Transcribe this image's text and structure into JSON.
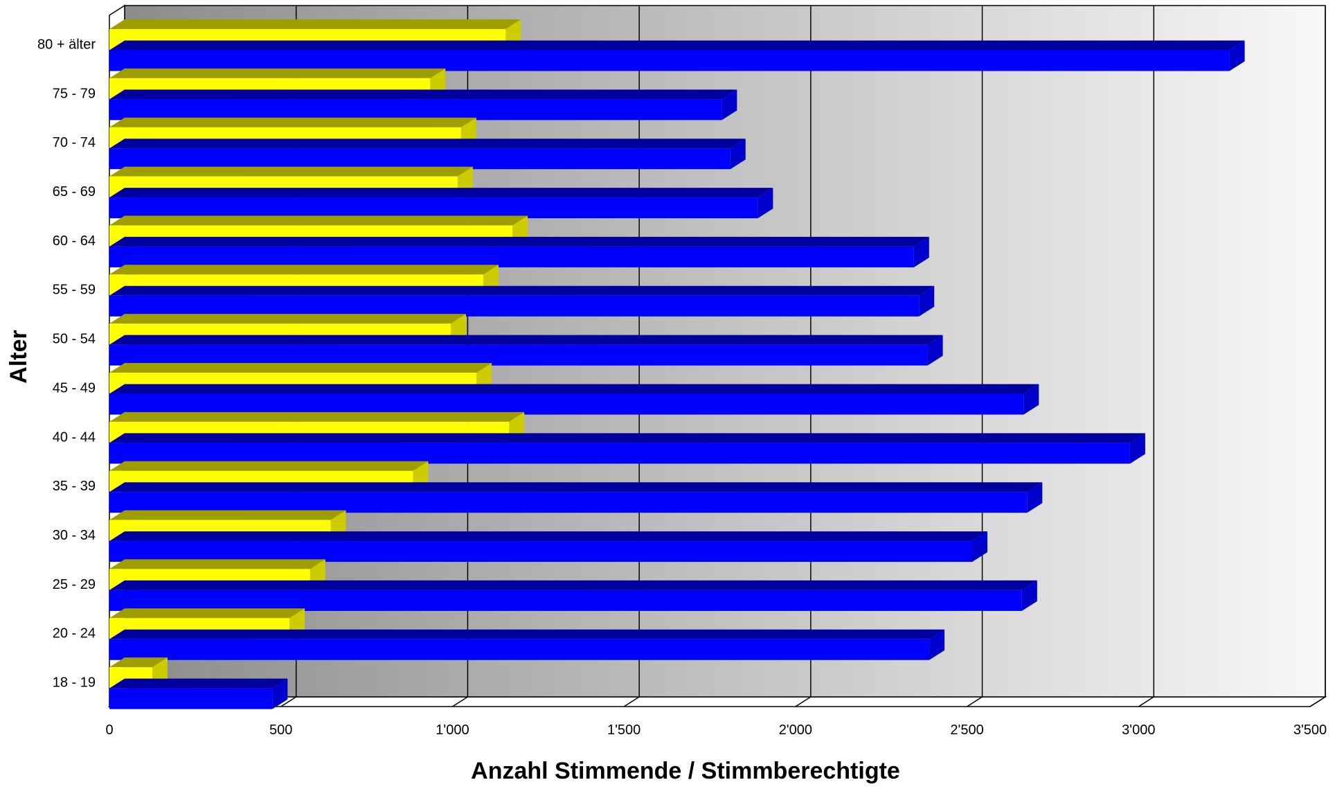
{
  "chart_data": {
    "type": "bar",
    "orientation": "horizontal",
    "style": "3d",
    "title": "",
    "xlabel": "Anzahl Stimmende / Stimmberechtigte",
    "ylabel": "Alter",
    "xlim": [
      0,
      3500
    ],
    "x_ticks": [
      "0",
      "500",
      "1'000",
      "1'500",
      "2'000",
      "2'500",
      "3'000",
      "3'500"
    ],
    "grid": "vertical",
    "legend": "none",
    "categories": [
      "18 - 19",
      "20 - 24",
      "25 - 29",
      "30 - 34",
      "35 - 39",
      "40 - 44",
      "45 - 49",
      "50 - 54",
      "55 - 59",
      "60 - 64",
      "65 - 69",
      "70 - 74",
      "75 - 79",
      "80 + älter"
    ],
    "series": [
      {
        "color": "#FFFF00",
        "values": [
          125,
          525,
          585,
          645,
          885,
          1165,
          1070,
          995,
          1090,
          1175,
          1015,
          1025,
          935,
          1155
        ]
      },
      {
        "color": "#0000FF",
        "values": [
          475,
          2390,
          2660,
          2515,
          2675,
          2975,
          2665,
          2385,
          2360,
          2345,
          1890,
          1810,
          1785,
          3265
        ]
      }
    ]
  }
}
